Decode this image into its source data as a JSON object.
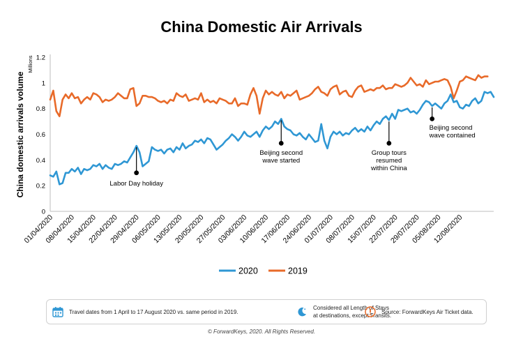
{
  "chart_data": {
    "type": "line",
    "title": "China Domestic Air Arrivals",
    "ylabel": "China domestic arrivals volume",
    "yunit": "Millions",
    "ylim": [
      0,
      1.2
    ],
    "yticks": [
      "0",
      "0.2",
      "0.4",
      "0.6",
      "0.8",
      "1",
      "1.2"
    ],
    "grid": false,
    "legend_position": "bottom",
    "xtick_labels": [
      "01/04/2020",
      "08/04/2020",
      "15/04/2020",
      "22/04/2020",
      "29/04/2020",
      "06/05/2020",
      "13/05/2020",
      "20/05/2020",
      "27/05/2020",
      "03/06/2020",
      "10/06/2020",
      "17/06/2020",
      "24/06/2020",
      "01/07/2020",
      "08/07/2020",
      "15/07/2020",
      "22/07/2020",
      "29/07/2020",
      "05/08/2020",
      "12/08/2020"
    ],
    "series": [
      {
        "name": "2020",
        "color": "#2f97d4",
        "values": [
          0.28,
          0.27,
          0.31,
          0.21,
          0.22,
          0.3,
          0.3,
          0.33,
          0.31,
          0.34,
          0.29,
          0.33,
          0.32,
          0.33,
          0.36,
          0.35,
          0.37,
          0.33,
          0.36,
          0.34,
          0.33,
          0.37,
          0.36,
          0.37,
          0.39,
          0.38,
          0.42,
          0.46,
          0.51,
          0.46,
          0.35,
          0.37,
          0.39,
          0.5,
          0.48,
          0.47,
          0.48,
          0.45,
          0.48,
          0.49,
          0.46,
          0.5,
          0.48,
          0.53,
          0.49,
          0.51,
          0.52,
          0.55,
          0.54,
          0.56,
          0.53,
          0.57,
          0.56,
          0.52,
          0.48,
          0.5,
          0.52,
          0.55,
          0.57,
          0.6,
          0.58,
          0.55,
          0.58,
          0.62,
          0.59,
          0.58,
          0.6,
          0.62,
          0.58,
          0.63,
          0.66,
          0.64,
          0.66,
          0.7,
          0.68,
          0.72,
          0.66,
          0.64,
          0.63,
          0.6,
          0.59,
          0.61,
          0.58,
          0.56,
          0.6,
          0.57,
          0.54,
          0.55,
          0.68,
          0.55,
          0.49,
          0.58,
          0.62,
          0.6,
          0.62,
          0.59,
          0.61,
          0.6,
          0.63,
          0.65,
          0.62,
          0.64,
          0.62,
          0.66,
          0.63,
          0.67,
          0.7,
          0.68,
          0.72,
          0.74,
          0.71,
          0.76,
          0.72,
          0.79,
          0.78,
          0.79,
          0.8,
          0.77,
          0.78,
          0.76,
          0.79,
          0.83,
          0.86,
          0.85,
          0.82,
          0.84,
          0.82,
          0.8,
          0.84,
          0.86,
          0.91,
          0.85,
          0.86,
          0.81,
          0.8,
          0.83,
          0.82,
          0.86,
          0.88,
          0.84,
          0.86,
          0.93,
          0.92,
          0.93,
          0.89
        ]
      },
      {
        "name": "2019",
        "color": "#e86a29",
        "values": [
          0.87,
          0.94,
          0.78,
          0.74,
          0.87,
          0.91,
          0.88,
          0.92,
          0.88,
          0.89,
          0.84,
          0.87,
          0.89,
          0.87,
          0.92,
          0.91,
          0.89,
          0.85,
          0.87,
          0.86,
          0.87,
          0.89,
          0.92,
          0.9,
          0.88,
          0.88,
          0.95,
          0.96,
          0.82,
          0.84,
          0.9,
          0.9,
          0.89,
          0.89,
          0.88,
          0.86,
          0.85,
          0.86,
          0.84,
          0.87,
          0.86,
          0.92,
          0.9,
          0.89,
          0.91,
          0.86,
          0.87,
          0.88,
          0.87,
          0.92,
          0.85,
          0.87,
          0.85,
          0.86,
          0.84,
          0.88,
          0.87,
          0.86,
          0.84,
          0.84,
          0.88,
          0.82,
          0.84,
          0.84,
          0.83,
          0.91,
          0.96,
          0.9,
          0.76,
          0.88,
          0.94,
          0.91,
          0.93,
          0.91,
          0.9,
          0.93,
          0.88,
          0.91,
          0.9,
          0.92,
          0.94,
          0.87,
          0.88,
          0.89,
          0.9,
          0.92,
          0.95,
          0.97,
          0.93,
          0.92,
          0.9,
          0.95,
          0.97,
          0.98,
          0.91,
          0.93,
          0.94,
          0.9,
          0.89,
          0.94,
          0.97,
          0.98,
          0.93,
          0.94,
          0.95,
          0.94,
          0.96,
          0.96,
          0.98,
          0.95,
          0.96,
          0.96,
          0.99,
          0.98,
          0.97,
          0.98,
          1.0,
          1.04,
          1.01,
          0.98,
          0.99,
          0.97,
          1.02,
          0.99,
          1.0,
          1.01,
          1.01,
          1.02,
          1.03,
          1.02,
          0.97,
          0.88,
          0.94,
          1.01,
          1.02,
          1.05,
          1.04,
          1.03,
          1.02,
          1.06,
          1.04,
          1.05,
          1.05
        ]
      }
    ],
    "annotations": [
      {
        "label": "Labor Day holiday",
        "lines": [
          "Labor Day holiday"
        ],
        "index": 28,
        "dot_value": 0.3
      },
      {
        "label": "Beijing second wave started",
        "lines": [
          "Beijing second",
          "wave started"
        ],
        "index": 75,
        "dot_value": 0.53
      },
      {
        "label": "Group tours resumed within China",
        "lines": [
          "Group tours",
          "resumed",
          "within China"
        ],
        "index": 110,
        "dot_value": 0.53
      },
      {
        "label": "Beijing second wave contained",
        "lines": [
          "Beijing second",
          "wave contained"
        ],
        "index": 124,
        "dot_value": 0.72
      }
    ]
  },
  "footer": {
    "notes": [
      {
        "icon": "calendar-icon",
        "text": "Travel dates from 1 April to 17 August 2020 vs. same period in 2019."
      },
      {
        "icon": "moon-icon",
        "line1": "Considered all Length of Stays",
        "line2": "at destinations, except Transits."
      },
      {
        "icon": "alert-icon",
        "text": "Source: ForwardKeys Air Ticket data."
      }
    ],
    "copyright": "© ForwardKeys, 2020. All Rights Reserved."
  },
  "colors": {
    "accent_orange": "#e86a29",
    "accent_blue": "#2f97d4"
  }
}
